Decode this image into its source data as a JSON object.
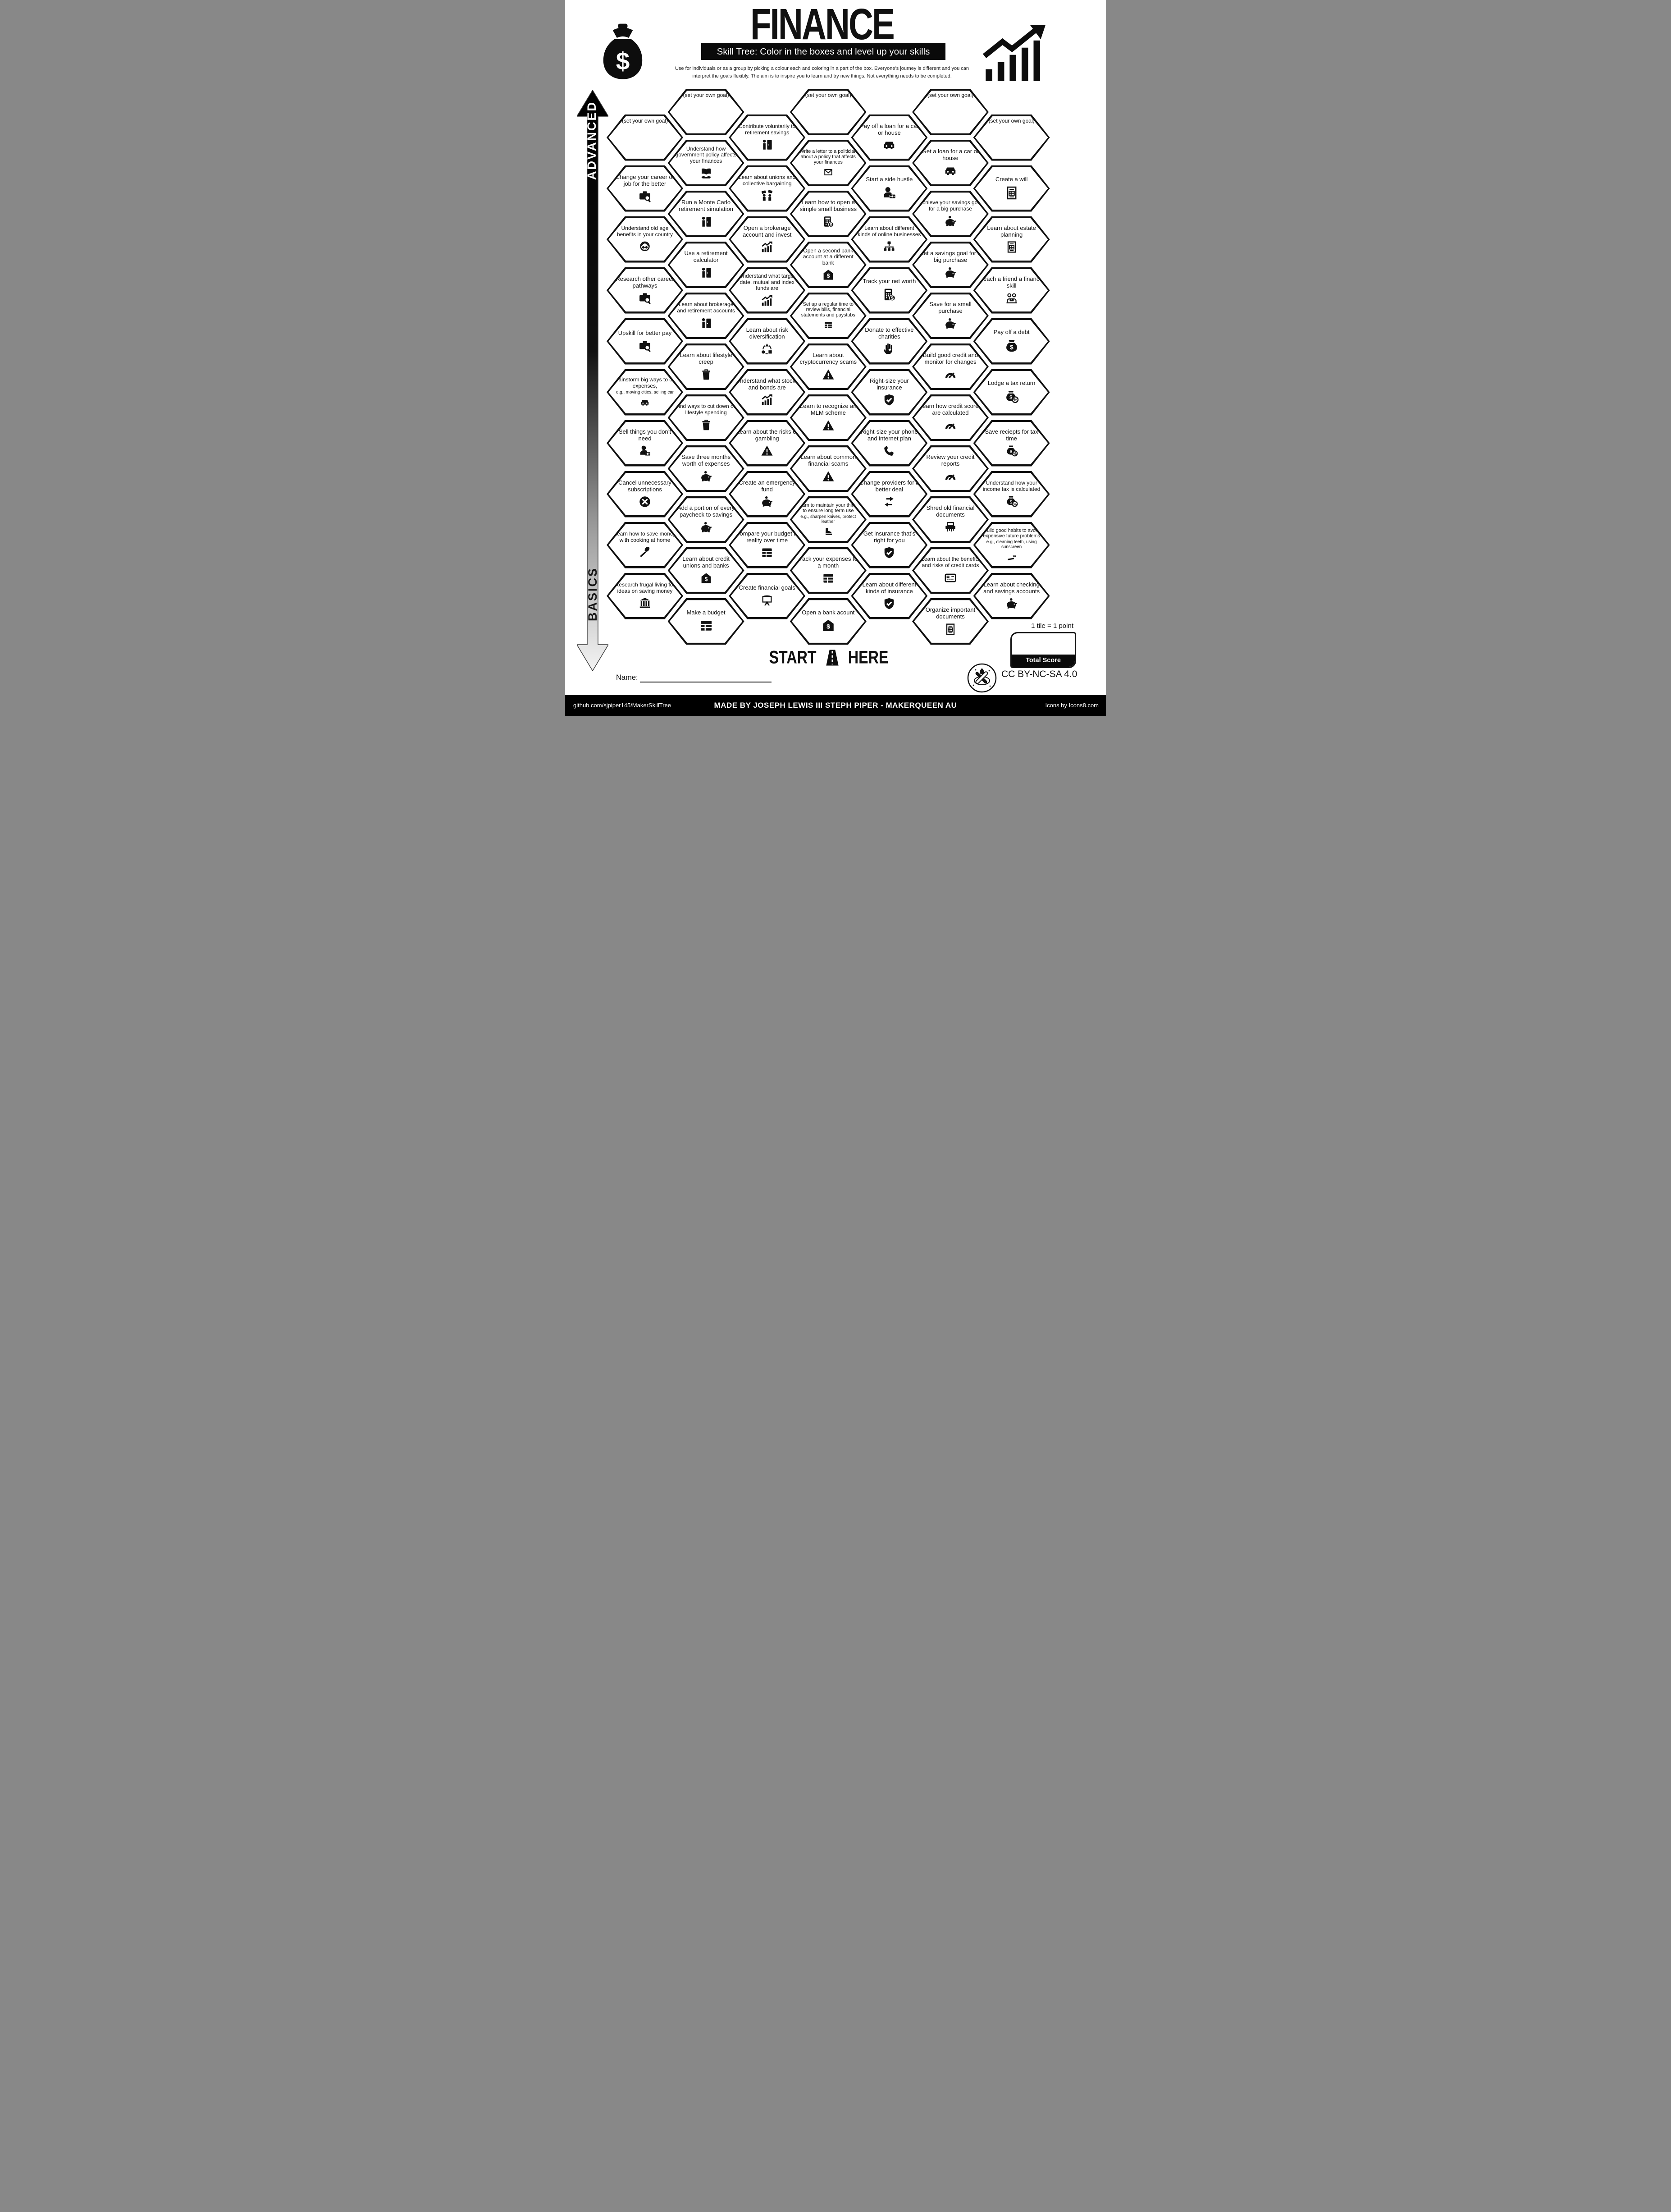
{
  "header": {
    "title": "FINANCE",
    "subtitle": "Skill Tree:  Color in the boxes and level up your skills",
    "description_line1": "Use for individuals or as a group by picking a colour each and coloring in a part of the box.  Everyone’s journey is different and you can",
    "description_line2": "interpret the goals flexibly.  The aim is to inspire you to learn and try new things. Not everything needs to be completed.",
    "money_bag_icon": "money-bag-icon",
    "growth_chart_icon": "growth-chart-icon"
  },
  "axis": {
    "advanced_label": "ADVANCED",
    "basics_label": "BASICS"
  },
  "start_marker": {
    "start_word": "START",
    "here_word": "HERE",
    "icon": "road-icon"
  },
  "name_field": {
    "label": "Name:"
  },
  "scoring": {
    "tile_note": "1 tile = 1 point",
    "total_score_label": "Total Score"
  },
  "footer": {
    "repo": "github.com/sjpiper145/MakerSkillTree",
    "credit": "MADE BY  JOSEPH LEWIS III STEPH PIPER  -  MAKERQUEEN AU",
    "icons_credit": "Icons by Icons8.com",
    "license": "CC BY-NC-SA 4.0",
    "logo_icon": "maker-tools-icon"
  },
  "colors": {
    "ink": "#111111",
    "paper": "#ffffff"
  },
  "columns": [
    {
      "offset": true,
      "hexes": [
        {
          "goal": true,
          "label": "(set your own goal)"
        },
        {
          "label": "Change your career or job for the better",
          "icon": "briefcase-search-icon"
        },
        {
          "label": "Understand old age benefits in your country",
          "icon": "old-man-icon"
        },
        {
          "label": "Research other career pathways",
          "icon": "briefcase-search-icon"
        },
        {
          "label": "Upskill for better pay",
          "icon": "briefcase-search-icon"
        },
        {
          "label": "Brainstorm big ways to cut expenses,",
          "sub": "e.g., moving cities, selling car",
          "icon": "car-icon"
        },
        {
          "label": "Sell things you don’t need",
          "icon": "person-money-icon"
        },
        {
          "label": "Cancel unnecessary subscriptions",
          "icon": "x-circle-icon"
        },
        {
          "label": "Learn how to save money with cooking at home",
          "icon": "spoon-icon"
        },
        {
          "label": "Research frugal living for ideas on saving money",
          "icon": "bank-building-icon"
        }
      ]
    },
    {
      "offset": false,
      "hexes": [
        {
          "goal": true,
          "label": "(set your own goal)"
        },
        {
          "label": "Understand how government policy affects your finances",
          "icon": "book-hand-icon"
        },
        {
          "label": "Run a Monte Carlo retirement simulation",
          "icon": "person-door-icon"
        },
        {
          "label": "Use a retirement calculator",
          "icon": "person-door-icon"
        },
        {
          "label": "Learn about brokerage and retirement accounts",
          "icon": "person-door-icon"
        },
        {
          "label": "Learn about lifestyle creep",
          "icon": "trash-icon"
        },
        {
          "label": "Find ways to cut down on lifestyle spending",
          "icon": "trash-icon"
        },
        {
          "label": "Save three months worth of expenses",
          "icon": "piggy-bank-icon"
        },
        {
          "label": "Add a portion of every paycheck to savings",
          "icon": "piggy-bank-icon"
        },
        {
          "label": "Learn about credit unions and banks",
          "icon": "bank-dollar-icon"
        },
        {
          "label": "Make a budget",
          "icon": "table-icon"
        }
      ]
    },
    {
      "offset": true,
      "hexes": [
        {
          "label": "Contribute voluntarily to retirement savings",
          "icon": "person-door-icon"
        },
        {
          "label": "Learn about unions and collective bargaining",
          "icon": "people-flags-icon"
        },
        {
          "label": "Open a brokerage account and invest",
          "icon": "chart-up-icon"
        },
        {
          "label": "Understand what target date, mutual and index funds are",
          "icon": "chart-up-icon"
        },
        {
          "label": "Learn about risk diversification",
          "icon": "shapes-cycle-icon"
        },
        {
          "label": "Understand what stocks and bonds are",
          "icon": "chart-up-icon"
        },
        {
          "label": "Learn about the risks of gambling",
          "icon": "warning-icon"
        },
        {
          "label": "Create an emergency fund",
          "icon": "piggy-bank-icon"
        },
        {
          "label": "Compare your budget to reality over time",
          "icon": "table-icon"
        },
        {
          "label": "Create financial goals",
          "icon": "easel-icon"
        }
      ]
    },
    {
      "offset": false,
      "hexes": [
        {
          "goal": true,
          "label": "(set your own goal)"
        },
        {
          "label": "Write a letter to a politician about a policy that affects your finances",
          "icon": "envelope-icon"
        },
        {
          "label": "Learn how to open a simple small business",
          "icon": "calculator-dollar-icon"
        },
        {
          "label": "Open a second bank account at a different bank",
          "icon": "bank-dollar-icon"
        },
        {
          "label": "Set up a regular time to review bills, financial statements and paystubs",
          "icon": "table-icon"
        },
        {
          "label": "Learn about cryptocurrency scams",
          "icon": "warning-icon"
        },
        {
          "label": "Learn to recognize an MLM scheme",
          "icon": "warning-icon"
        },
        {
          "label": "Learn about common financial scams",
          "icon": "warning-icon"
        },
        {
          "label": "Learn to maintain your things to ensure long term use",
          "sub": "e.g., sharpen knives, protect leather",
          "icon": "boot-icon"
        },
        {
          "label": "Track your expenses for a month",
          "icon": "table-icon"
        },
        {
          "label": "Open a bank acount",
          "icon": "bank-dollar-icon"
        }
      ]
    },
    {
      "offset": true,
      "hexes": [
        {
          "label": "Pay off a loan for a car or house",
          "icon": "car-icon"
        },
        {
          "label": "Start a side hustle",
          "icon": "person-money-icon"
        },
        {
          "label": "Learn about different kinds of online businesses",
          "icon": "hierarchy-icon"
        },
        {
          "label": "Track your net worth",
          "icon": "calculator-dollar-icon"
        },
        {
          "label": "Donate to effective charities",
          "icon": "hand-heart-icon"
        },
        {
          "label": "Right-size your insurance",
          "icon": "shield-check-icon"
        },
        {
          "label": "Right-size your phone and internet plan",
          "icon": "phone-icon"
        },
        {
          "label": "Change providers for a better deal",
          "icon": "swap-arrows-icon"
        },
        {
          "label": "Get insurance that’s right for you",
          "icon": "shield-check-icon"
        },
        {
          "label": "Learn about different kinds of insurance",
          "icon": "shield-check-icon"
        }
      ]
    },
    {
      "offset": false,
      "hexes": [
        {
          "goal": true,
          "label": "(set your own goal)"
        },
        {
          "label": "Get a loan for a car or house",
          "icon": "car-icon"
        },
        {
          "label": "Achieve your savings goal for a big purchase",
          "icon": "piggy-bank-icon"
        },
        {
          "label": "Set a savings goal for a big purchase",
          "icon": "piggy-bank-icon"
        },
        {
          "label": "Save for a small purchase",
          "icon": "piggy-bank-icon"
        },
        {
          "label": "Build good credit and monitor for changes",
          "icon": "gauge-icon"
        },
        {
          "label": "Learn how credit scores are calculated",
          "icon": "gauge-icon"
        },
        {
          "label": "Review your credit reports",
          "icon": "gauge-icon"
        },
        {
          "label": "Shred old financial documents",
          "icon": "shredder-icon"
        },
        {
          "label": "Learn about the benefits and risks of credit cards",
          "icon": "credit-card-icon"
        },
        {
          "label": "Organize important documents",
          "icon": "document-icon"
        }
      ]
    },
    {
      "offset": true,
      "hexes": [
        {
          "goal": true,
          "label": "(set your own goal)"
        },
        {
          "label": "Create a will",
          "icon": "document-icon"
        },
        {
          "label": "Learn about estate planning",
          "icon": "document-icon"
        },
        {
          "label": "Teach a friend a finance skill",
          "icon": "people-laptop-icon"
        },
        {
          "label": "Pay off a debt",
          "icon": "money-bag-icon"
        },
        {
          "label": "Lodge a tax return",
          "icon": "money-bag-percent-icon"
        },
        {
          "label": "Save reciepts for tax time",
          "icon": "money-bag-percent-icon"
        },
        {
          "label": "Understand how your income tax is calculated",
          "icon": "money-bag-percent-icon"
        },
        {
          "label": "Build good habits to avoid expensive future problems",
          "sub": "e.g., cleaning teeth, using sunscreen",
          "icon": "toothbrush-icon"
        },
        {
          "label": "Learn about checking and savings accounts",
          "icon": "piggy-bank-icon"
        }
      ]
    }
  ]
}
